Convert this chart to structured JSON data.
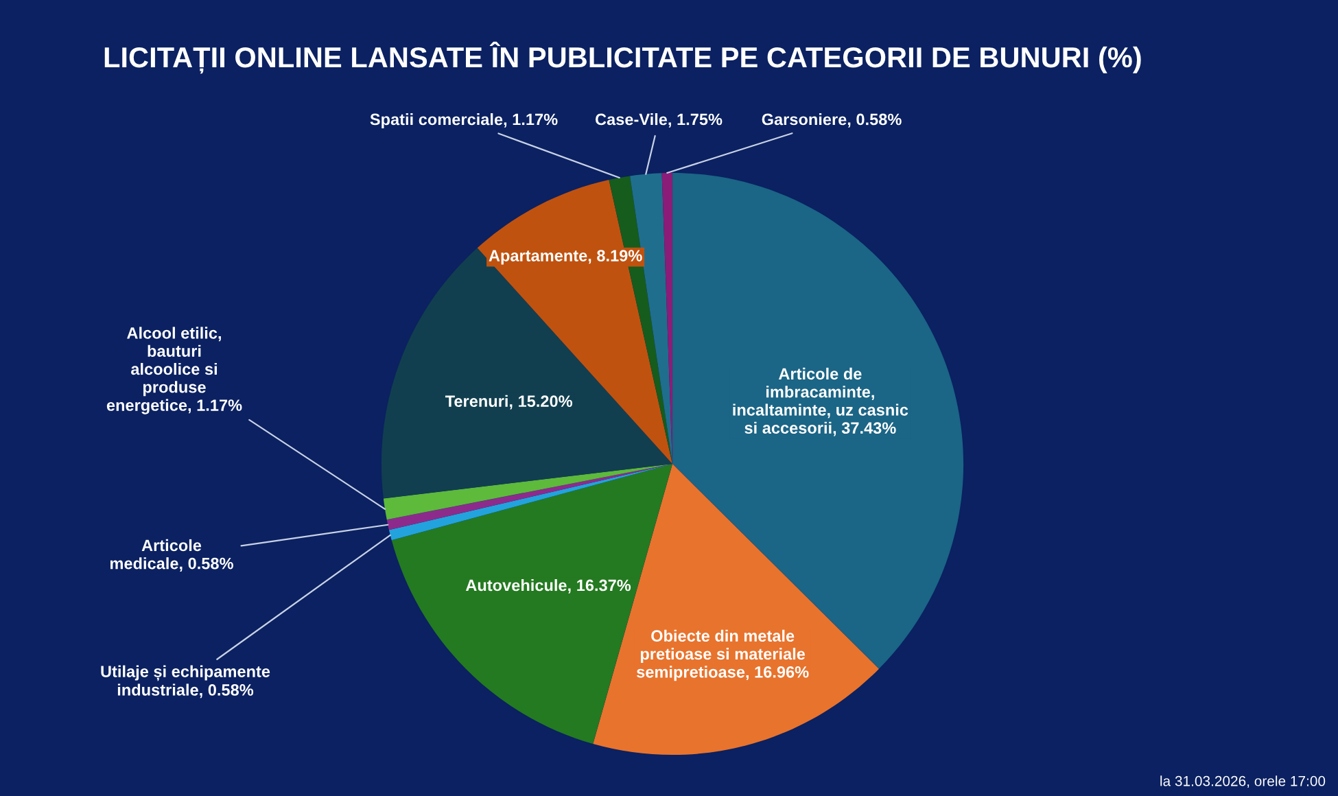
{
  "chart_data": {
    "type": "pie",
    "title": "LICITAȚII ONLINE LANSATE ÎN PUBLICITATE PE CATEGORII DE BUNURI (%)",
    "categories": [
      "Articole de\nimbracaminte,\nincaltaminte, uz casnic\nsi accesorii",
      "Obiecte din metale\npretioase si materiale\nsemipretioase",
      "Autovehicule",
      "Utilaje și echipamente\nindustriale",
      "Articole\nmedicale",
      "Alcool etilic,\nbauturi\nalcoolice si\nproduse\nenergetice",
      "Terenuri",
      "Apartamente",
      "Spatii comerciale",
      "Case-Vile",
      "Garsoniere"
    ],
    "values": [
      37.43,
      16.96,
      16.37,
      0.58,
      0.58,
      1.17,
      15.2,
      8.19,
      1.17,
      1.75,
      0.58
    ],
    "value_labels": [
      "37.43%",
      "16.96%",
      "16.37%",
      "0.58%",
      "0.58%",
      "1.17%",
      "15.20%",
      "8.19%",
      "1.17%",
      "1.75%",
      "0.58%"
    ],
    "colors": [
      "#1b6586",
      "#e8732d",
      "#247a20",
      "#22a3dd",
      "#8d2b8d",
      "#5dba3b",
      "#113f4f",
      "#c0520f",
      "#165c1c",
      "#1f6e8e",
      "#8b1c78"
    ],
    "annotations": [
      "la 31.03.2026, orele 17:00"
    ]
  }
}
